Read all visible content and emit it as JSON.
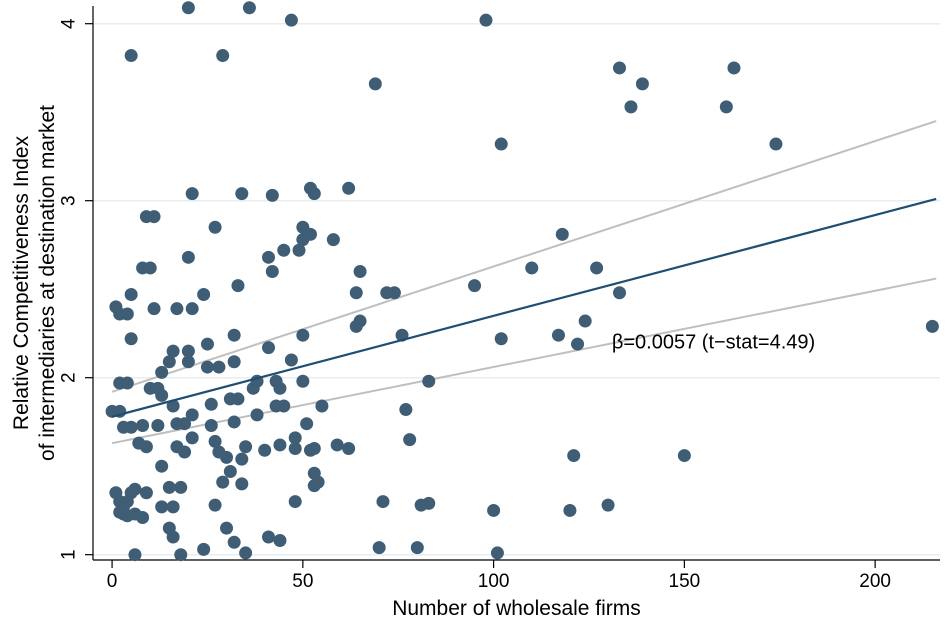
{
  "chart_data": {
    "type": "scatter",
    "xlabel": "Number of wholesale firms",
    "ylabel_lines": [
      "Relative Competitiveness Index",
      "of intermediaries at destination market"
    ],
    "xlim": [
      -5,
      217
    ],
    "ylim": [
      0.97,
      4.1
    ],
    "x_ticks": [
      0,
      50,
      100,
      150,
      200
    ],
    "y_ticks": [
      1,
      2,
      3,
      4
    ],
    "grid": "horizontal",
    "annotation": "β=0.0057 (t−stat=4.49)",
    "annotation_position": {
      "x": 131,
      "y": 2.2
    },
    "colors": {
      "points": "#3F5E75",
      "fit_line": "#1F4E73",
      "ci_lines": "#BFBFBF",
      "grid": "#E6EEF1"
    },
    "fit_line": {
      "x": [
        0,
        216
      ],
      "y": [
        1.78,
        3.01
      ]
    },
    "ci_upper": {
      "x": [
        0,
        216
      ],
      "y": [
        1.92,
        3.45
      ]
    },
    "ci_lower": {
      "x": [
        0,
        216
      ],
      "y": [
        1.63,
        2.56
      ]
    },
    "points": [
      [
        20,
        4.09
      ],
      [
        36,
        4.09
      ],
      [
        47,
        4.02
      ],
      [
        98,
        4.02
      ],
      [
        5,
        3.82
      ],
      [
        29,
        3.82
      ],
      [
        69,
        3.66
      ],
      [
        133,
        3.75
      ],
      [
        163,
        3.75
      ],
      [
        139,
        3.66
      ],
      [
        136,
        3.53
      ],
      [
        161,
        3.53
      ],
      [
        102,
        3.32
      ],
      [
        174,
        3.32
      ],
      [
        21,
        3.04
      ],
      [
        34,
        3.04
      ],
      [
        42,
        3.03
      ],
      [
        52,
        3.07
      ],
      [
        53,
        3.04
      ],
      [
        62,
        3.07
      ],
      [
        9,
        2.91
      ],
      [
        11,
        2.91
      ],
      [
        27,
        2.85
      ],
      [
        50,
        2.85
      ],
      [
        52,
        2.81
      ],
      [
        50,
        2.78
      ],
      [
        58,
        2.78
      ],
      [
        118,
        2.81
      ],
      [
        110,
        2.62
      ],
      [
        127,
        2.62
      ],
      [
        8,
        2.62
      ],
      [
        10,
        2.62
      ],
      [
        20,
        2.68
      ],
      [
        41,
        2.68
      ],
      [
        45,
        2.72
      ],
      [
        49,
        2.72
      ],
      [
        65,
        2.6
      ],
      [
        42,
        2.6
      ],
      [
        33,
        2.52
      ],
      [
        72,
        2.48
      ],
      [
        74,
        2.48
      ],
      [
        95,
        2.52
      ],
      [
        64,
        2.48
      ],
      [
        133,
        2.48
      ],
      [
        1,
        2.4
      ],
      [
        2,
        2.36
      ],
      [
        4,
        2.36
      ],
      [
        5,
        2.47
      ],
      [
        11,
        2.39
      ],
      [
        17,
        2.39
      ],
      [
        21,
        2.39
      ],
      [
        24,
        2.47
      ],
      [
        5,
        2.22
      ],
      [
        25,
        2.19
      ],
      [
        32,
        2.24
      ],
      [
        41,
        2.17
      ],
      [
        50,
        2.24
      ],
      [
        64,
        2.29
      ],
      [
        65,
        2.32
      ],
      [
        76,
        2.24
      ],
      [
        102,
        2.22
      ],
      [
        117,
        2.24
      ],
      [
        122,
        2.19
      ],
      [
        124,
        2.32
      ],
      [
        215,
        2.29
      ],
      [
        16,
        2.15
      ],
      [
        20,
        2.15
      ],
      [
        15,
        2.09
      ],
      [
        20,
        2.09
      ],
      [
        13,
        2.03
      ],
      [
        25,
        2.06
      ],
      [
        28,
        2.06
      ],
      [
        32,
        2.09
      ],
      [
        47,
        2.1
      ],
      [
        2,
        1.97
      ],
      [
        4,
        1.97
      ],
      [
        10,
        1.94
      ],
      [
        12,
        1.94
      ],
      [
        13,
        1.9
      ],
      [
        16,
        1.84
      ],
      [
        26,
        1.85
      ],
      [
        31,
        1.88
      ],
      [
        33,
        1.88
      ],
      [
        37,
        1.94
      ],
      [
        38,
        1.98
      ],
      [
        43,
        1.98
      ],
      [
        44,
        1.94
      ],
      [
        45,
        1.84
      ],
      [
        50,
        1.98
      ],
      [
        55,
        1.84
      ],
      [
        83,
        1.98
      ],
      [
        0,
        1.81
      ],
      [
        2,
        1.81
      ],
      [
        3,
        1.72
      ],
      [
        5,
        1.72
      ],
      [
        8,
        1.73
      ],
      [
        12,
        1.73
      ],
      [
        17,
        1.74
      ],
      [
        19,
        1.74
      ],
      [
        21,
        1.79
      ],
      [
        26,
        1.73
      ],
      [
        32,
        1.75
      ],
      [
        38,
        1.79
      ],
      [
        43,
        1.84
      ],
      [
        51,
        1.74
      ],
      [
        77,
        1.82
      ],
      [
        7,
        1.63
      ],
      [
        9,
        1.61
      ],
      [
        13,
        1.5
      ],
      [
        17,
        1.61
      ],
      [
        19,
        1.58
      ],
      [
        21,
        1.66
      ],
      [
        27,
        1.64
      ],
      [
        28,
        1.58
      ],
      [
        30,
        1.55
      ],
      [
        31,
        1.47
      ],
      [
        34,
        1.54
      ],
      [
        35,
        1.61
      ],
      [
        40,
        1.59
      ],
      [
        44,
        1.62
      ],
      [
        48,
        1.6
      ],
      [
        48,
        1.66
      ],
      [
        52,
        1.59
      ],
      [
        53,
        1.6
      ],
      [
        53,
        1.46
      ],
      [
        53,
        1.39
      ],
      [
        54,
        1.41
      ],
      [
        59,
        1.62
      ],
      [
        62,
        1.6
      ],
      [
        78,
        1.65
      ],
      [
        121,
        1.56
      ],
      [
        150,
        1.56
      ],
      [
        1,
        1.35
      ],
      [
        2,
        1.3
      ],
      [
        3,
        1.27
      ],
      [
        4,
        1.3
      ],
      [
        4,
        1.22
      ],
      [
        5,
        1.35
      ],
      [
        6,
        1.37
      ],
      [
        8,
        1.21
      ],
      [
        9,
        1.35
      ],
      [
        13,
        1.27
      ],
      [
        15,
        1.38
      ],
      [
        16,
        1.27
      ],
      [
        18,
        1.38
      ],
      [
        27,
        1.28
      ],
      [
        29,
        1.41
      ],
      [
        34,
        1.4
      ],
      [
        48,
        1.3
      ],
      [
        71,
        1.3
      ],
      [
        81,
        1.28
      ],
      [
        83,
        1.29
      ],
      [
        100,
        1.25
      ],
      [
        120,
        1.25
      ],
      [
        130,
        1.28
      ],
      [
        2,
        1.24
      ],
      [
        3,
        1.23
      ],
      [
        6,
        1.23
      ],
      [
        15,
        1.15
      ],
      [
        16,
        1.1
      ],
      [
        24,
        1.03
      ],
      [
        30,
        1.15
      ],
      [
        32,
        1.07
      ],
      [
        35,
        1.01
      ],
      [
        41,
        1.1
      ],
      [
        44,
        1.08
      ],
      [
        6,
        1.0
      ],
      [
        18,
        1.0
      ],
      [
        70,
        1.04
      ],
      [
        80,
        1.04
      ],
      [
        101,
        1.01
      ]
    ]
  }
}
